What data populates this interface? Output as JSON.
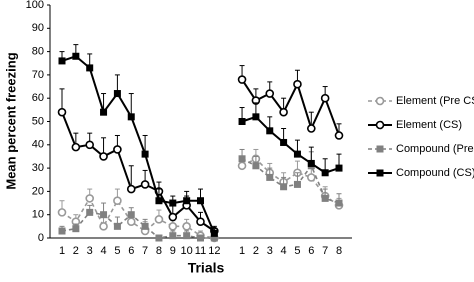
{
  "chart_data": {
    "type": "line",
    "x_label": "Trials",
    "y_label": "Mean percent freezing",
    "categories": [
      "1",
      "2",
      "3",
      "4",
      "5",
      "6",
      "7",
      "8",
      "9",
      "10",
      "11",
      "12",
      null,
      "1",
      "2",
      "3",
      "4",
      "5",
      "6",
      "7",
      "8"
    ],
    "ylim": [
      0,
      100
    ],
    "yticks": [
      0,
      10,
      20,
      30,
      40,
      50,
      60,
      70,
      80,
      90,
      100
    ],
    "series": [
      {
        "name": "Element (Pre CS)",
        "color": "#999999",
        "marker": "circle",
        "dash": true,
        "values": [
          11,
          7,
          17,
          5,
          16,
          7,
          3,
          8,
          5,
          5,
          1,
          0,
          null,
          31,
          34,
          28,
          24,
          28,
          26,
          18,
          14
        ],
        "errors": [
          5,
          3,
          4,
          5,
          5,
          3,
          4,
          4,
          3,
          3,
          2,
          1,
          null,
          4,
          4,
          4,
          4,
          5,
          5,
          4,
          3
        ]
      },
      {
        "name": "Element (CS)",
        "color": "#000000",
        "marker": "circle",
        "dash": false,
        "values": [
          54,
          39,
          40,
          35,
          38,
          21,
          23,
          20,
          9,
          14,
          7,
          3,
          null,
          68,
          59,
          62,
          54,
          66,
          47,
          60,
          44
        ],
        "errors": [
          10,
          6,
          5,
          8,
          6,
          10,
          6,
          4,
          5,
          4,
          4,
          2,
          null,
          6,
          5,
          5,
          6,
          6,
          7,
          5,
          5
        ]
      },
      {
        "name": "Compound (Pre CS)",
        "color": "#808080",
        "marker": "square",
        "dash": true,
        "values": [
          3,
          4,
          11,
          10,
          5,
          10,
          5,
          0,
          1,
          1,
          0,
          0,
          null,
          34,
          31,
          26,
          22,
          23,
          31,
          17,
          15
        ],
        "errors": [
          2,
          2,
          3,
          5,
          4,
          3,
          3,
          1,
          2,
          2,
          1,
          1,
          null,
          4,
          4,
          4,
          4,
          5,
          6,
          4,
          4
        ]
      },
      {
        "name": "Compound (CS)",
        "color": "#000000",
        "marker": "square",
        "dash": false,
        "values": [
          76,
          78,
          73,
          54,
          62,
          52,
          36,
          16,
          15,
          16,
          16,
          2,
          null,
          50,
          52,
          46,
          41,
          36,
          32,
          28,
          30
        ],
        "errors": [
          4,
          5,
          6,
          8,
          8,
          10,
          8,
          5,
          3,
          4,
          5,
          2,
          null,
          6,
          6,
          6,
          6,
          6,
          7,
          6,
          6
        ]
      }
    ]
  }
}
